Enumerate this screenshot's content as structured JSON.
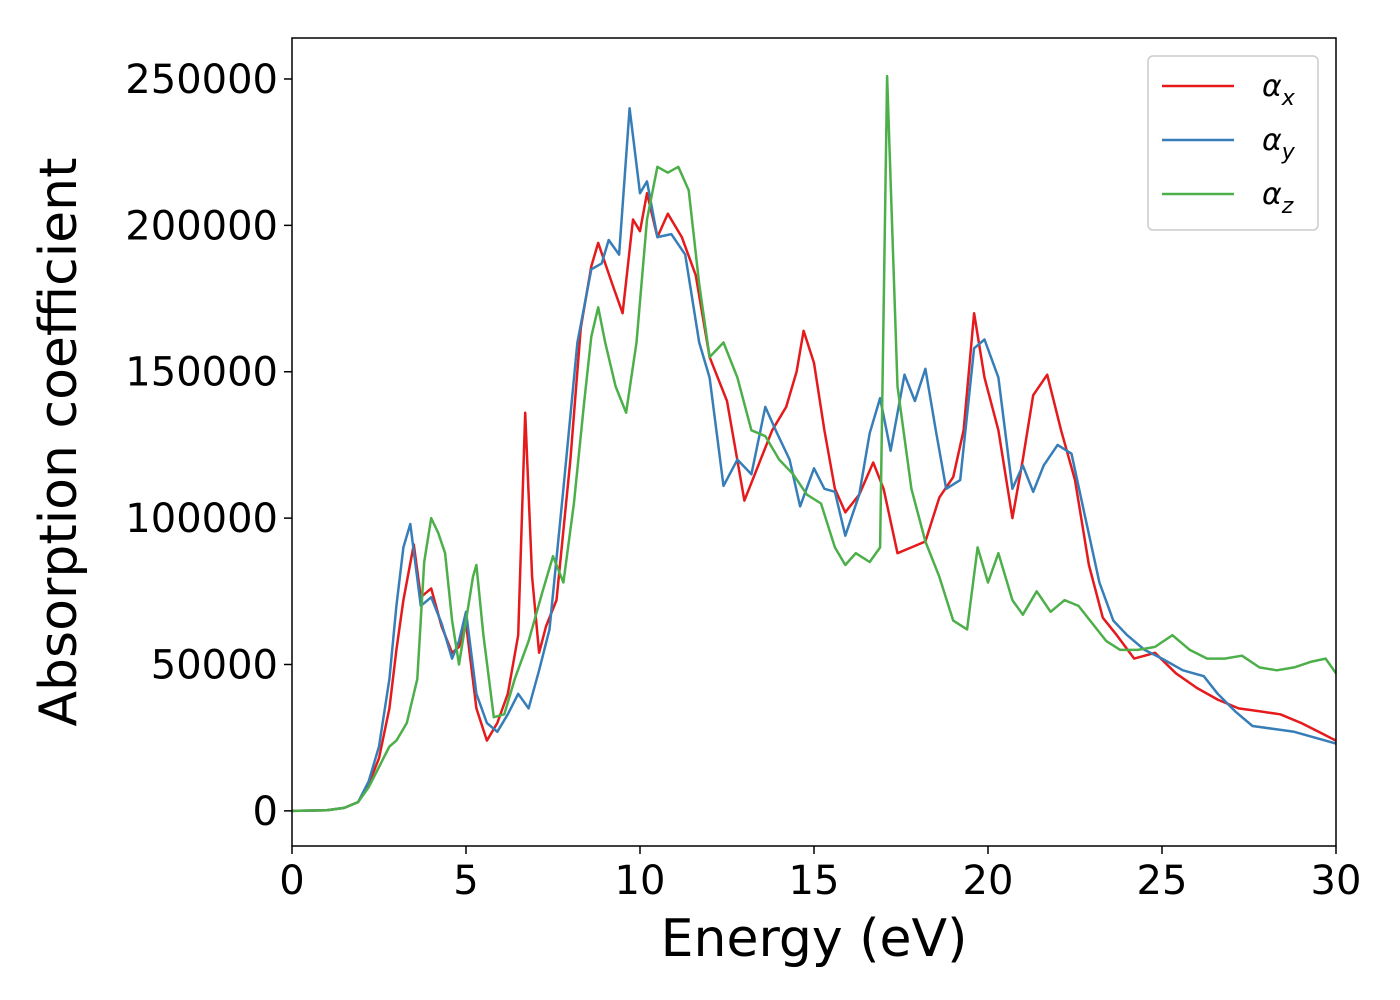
{
  "chart_data": {
    "type": "line",
    "xlabel": "Energy (eV)",
    "ylabel": "Absorption coefficient",
    "xlim": [
      0,
      30
    ],
    "ylim": [
      -12000,
      264000
    ],
    "x_ticks": [
      "0",
      "5",
      "10",
      "15",
      "20",
      "25",
      "30"
    ],
    "y_ticks": [
      "0",
      "50000",
      "100000",
      "150000",
      "200000",
      "250000"
    ],
    "grid": false,
    "legend_position": "top-right",
    "series": [
      {
        "name": "α",
        "subscript": "x",
        "color": "#e41a1c",
        "points": [
          [
            0,
            0
          ],
          [
            1.0,
            200
          ],
          [
            1.5,
            1000
          ],
          [
            1.9,
            3000
          ],
          [
            2.2,
            9000
          ],
          [
            2.5,
            18000
          ],
          [
            2.8,
            35000
          ],
          [
            3.0,
            55000
          ],
          [
            3.2,
            72000
          ],
          [
            3.5,
            91000
          ],
          [
            3.7,
            73000
          ],
          [
            4.0,
            76000
          ],
          [
            4.3,
            63000
          ],
          [
            4.6,
            54000
          ],
          [
            4.8,
            56000
          ],
          [
            5.0,
            64000
          ],
          [
            5.3,
            35000
          ],
          [
            5.6,
            24000
          ],
          [
            5.9,
            30000
          ],
          [
            6.2,
            40000
          ],
          [
            6.5,
            60000
          ],
          [
            6.7,
            136000
          ],
          [
            6.9,
            80000
          ],
          [
            7.1,
            54000
          ],
          [
            7.3,
            63000
          ],
          [
            7.6,
            72000
          ],
          [
            8.0,
            120000
          ],
          [
            8.3,
            165000
          ],
          [
            8.6,
            186000
          ],
          [
            8.8,
            194000
          ],
          [
            9.2,
            180000
          ],
          [
            9.5,
            170000
          ],
          [
            9.8,
            202000
          ],
          [
            10.0,
            198000
          ],
          [
            10.2,
            211000
          ],
          [
            10.5,
            196000
          ],
          [
            10.8,
            204000
          ],
          [
            11.2,
            196000
          ],
          [
            11.6,
            183000
          ],
          [
            12.0,
            155000
          ],
          [
            12.5,
            140000
          ],
          [
            13.0,
            106000
          ],
          [
            13.4,
            118000
          ],
          [
            13.8,
            130000
          ],
          [
            14.2,
            138000
          ],
          [
            14.5,
            150000
          ],
          [
            14.7,
            164000
          ],
          [
            15.0,
            153000
          ],
          [
            15.3,
            130000
          ],
          [
            15.6,
            110000
          ],
          [
            15.9,
            102000
          ],
          [
            16.3,
            108000
          ],
          [
            16.7,
            119000
          ],
          [
            17.0,
            110000
          ],
          [
            17.4,
            88000
          ],
          [
            17.8,
            90000
          ],
          [
            18.2,
            92000
          ],
          [
            18.6,
            107000
          ],
          [
            19.0,
            114000
          ],
          [
            19.3,
            130000
          ],
          [
            19.6,
            170000
          ],
          [
            19.9,
            148000
          ],
          [
            20.3,
            130000
          ],
          [
            20.7,
            100000
          ],
          [
            21.0,
            120000
          ],
          [
            21.3,
            142000
          ],
          [
            21.7,
            149000
          ],
          [
            22.1,
            130000
          ],
          [
            22.5,
            113000
          ],
          [
            22.9,
            84000
          ],
          [
            23.3,
            66000
          ],
          [
            23.7,
            60000
          ],
          [
            24.2,
            52000
          ],
          [
            24.8,
            54000
          ],
          [
            25.4,
            47000
          ],
          [
            26.0,
            42000
          ],
          [
            26.6,
            38000
          ],
          [
            27.2,
            35000
          ],
          [
            27.8,
            34000
          ],
          [
            28.4,
            33000
          ],
          [
            29.0,
            30000
          ],
          [
            29.5,
            27000
          ],
          [
            30.0,
            24000
          ]
        ]
      },
      {
        "name": "α",
        "subscript": "y",
        "color": "#377eb8",
        "points": [
          [
            0,
            0
          ],
          [
            1.0,
            200
          ],
          [
            1.5,
            1000
          ],
          [
            1.9,
            3000
          ],
          [
            2.2,
            10000
          ],
          [
            2.5,
            22000
          ],
          [
            2.8,
            45000
          ],
          [
            3.0,
            70000
          ],
          [
            3.2,
            90000
          ],
          [
            3.4,
            98000
          ],
          [
            3.7,
            70000
          ],
          [
            4.0,
            73000
          ],
          [
            4.3,
            64000
          ],
          [
            4.6,
            52000
          ],
          [
            4.8,
            58000
          ],
          [
            5.0,
            68000
          ],
          [
            5.3,
            40000
          ],
          [
            5.6,
            30000
          ],
          [
            5.9,
            27000
          ],
          [
            6.2,
            33000
          ],
          [
            6.5,
            40000
          ],
          [
            6.8,
            35000
          ],
          [
            7.1,
            48000
          ],
          [
            7.4,
            62000
          ],
          [
            7.8,
            110000
          ],
          [
            8.2,
            160000
          ],
          [
            8.6,
            185000
          ],
          [
            8.9,
            187000
          ],
          [
            9.1,
            195000
          ],
          [
            9.4,
            190000
          ],
          [
            9.7,
            240000
          ],
          [
            10.0,
            211000
          ],
          [
            10.2,
            215000
          ],
          [
            10.5,
            196000
          ],
          [
            10.9,
            197000
          ],
          [
            11.3,
            190000
          ],
          [
            11.7,
            160000
          ],
          [
            12.0,
            148000
          ],
          [
            12.4,
            111000
          ],
          [
            12.8,
            120000
          ],
          [
            13.2,
            115000
          ],
          [
            13.6,
            138000
          ],
          [
            13.9,
            130000
          ],
          [
            14.3,
            120000
          ],
          [
            14.6,
            104000
          ],
          [
            15.0,
            117000
          ],
          [
            15.3,
            110000
          ],
          [
            15.6,
            109000
          ],
          [
            15.9,
            94000
          ],
          [
            16.3,
            108000
          ],
          [
            16.6,
            129000
          ],
          [
            16.9,
            141000
          ],
          [
            17.2,
            123000
          ],
          [
            17.6,
            149000
          ],
          [
            17.9,
            140000
          ],
          [
            18.2,
            151000
          ],
          [
            18.5,
            130000
          ],
          [
            18.8,
            110000
          ],
          [
            19.2,
            113000
          ],
          [
            19.6,
            158000
          ],
          [
            19.9,
            161000
          ],
          [
            20.3,
            148000
          ],
          [
            20.7,
            110000
          ],
          [
            21.0,
            118000
          ],
          [
            21.3,
            109000
          ],
          [
            21.6,
            118000
          ],
          [
            22.0,
            125000
          ],
          [
            22.4,
            122000
          ],
          [
            22.8,
            100000
          ],
          [
            23.2,
            78000
          ],
          [
            23.6,
            65000
          ],
          [
            24.0,
            60000
          ],
          [
            24.5,
            55000
          ],
          [
            25.0,
            52000
          ],
          [
            25.6,
            48000
          ],
          [
            26.2,
            46000
          ],
          [
            26.6,
            40000
          ],
          [
            27.1,
            34000
          ],
          [
            27.6,
            29000
          ],
          [
            28.2,
            28000
          ],
          [
            28.8,
            27000
          ],
          [
            29.4,
            25000
          ],
          [
            30.0,
            23000
          ]
        ]
      },
      {
        "name": "α",
        "subscript": "z",
        "color": "#4daf4a",
        "points": [
          [
            0,
            0
          ],
          [
            1.0,
            200
          ],
          [
            1.5,
            1000
          ],
          [
            1.9,
            3000
          ],
          [
            2.2,
            8000
          ],
          [
            2.5,
            15000
          ],
          [
            2.8,
            22000
          ],
          [
            3.0,
            24000
          ],
          [
            3.3,
            30000
          ],
          [
            3.6,
            45000
          ],
          [
            3.8,
            85000
          ],
          [
            4.0,
            100000
          ],
          [
            4.2,
            95000
          ],
          [
            4.4,
            88000
          ],
          [
            4.6,
            65000
          ],
          [
            4.8,
            50000
          ],
          [
            5.0,
            65000
          ],
          [
            5.2,
            80000
          ],
          [
            5.3,
            84000
          ],
          [
            5.5,
            60000
          ],
          [
            5.8,
            32000
          ],
          [
            6.1,
            33000
          ],
          [
            6.4,
            45000
          ],
          [
            6.8,
            58000
          ],
          [
            7.2,
            75000
          ],
          [
            7.5,
            87000
          ],
          [
            7.8,
            78000
          ],
          [
            8.1,
            105000
          ],
          [
            8.4,
            140000
          ],
          [
            8.6,
            162000
          ],
          [
            8.8,
            172000
          ],
          [
            9.0,
            160000
          ],
          [
            9.3,
            145000
          ],
          [
            9.6,
            136000
          ],
          [
            9.9,
            160000
          ],
          [
            10.2,
            202000
          ],
          [
            10.5,
            220000
          ],
          [
            10.8,
            218000
          ],
          [
            11.1,
            220000
          ],
          [
            11.4,
            212000
          ],
          [
            11.7,
            180000
          ],
          [
            12.0,
            155000
          ],
          [
            12.4,
            160000
          ],
          [
            12.8,
            148000
          ],
          [
            13.2,
            130000
          ],
          [
            13.6,
            128000
          ],
          [
            14.0,
            120000
          ],
          [
            14.4,
            115000
          ],
          [
            14.8,
            108000
          ],
          [
            15.2,
            105000
          ],
          [
            15.6,
            90000
          ],
          [
            15.9,
            84000
          ],
          [
            16.2,
            88000
          ],
          [
            16.6,
            85000
          ],
          [
            16.9,
            90000
          ],
          [
            17.1,
            251000
          ],
          [
            17.4,
            145000
          ],
          [
            17.8,
            110000
          ],
          [
            18.2,
            92000
          ],
          [
            18.6,
            80000
          ],
          [
            19.0,
            65000
          ],
          [
            19.4,
            62000
          ],
          [
            19.7,
            90000
          ],
          [
            20.0,
            78000
          ],
          [
            20.3,
            88000
          ],
          [
            20.7,
            72000
          ],
          [
            21.0,
            67000
          ],
          [
            21.4,
            75000
          ],
          [
            21.8,
            68000
          ],
          [
            22.2,
            72000
          ],
          [
            22.6,
            70000
          ],
          [
            23.0,
            64000
          ],
          [
            23.4,
            58000
          ],
          [
            23.8,
            55000
          ],
          [
            24.3,
            55000
          ],
          [
            24.8,
            56000
          ],
          [
            25.3,
            60000
          ],
          [
            25.8,
            55000
          ],
          [
            26.3,
            52000
          ],
          [
            26.8,
            52000
          ],
          [
            27.3,
            53000
          ],
          [
            27.8,
            49000
          ],
          [
            28.3,
            48000
          ],
          [
            28.8,
            49000
          ],
          [
            29.3,
            51000
          ],
          [
            29.7,
            52000
          ],
          [
            30.0,
            47000
          ]
        ]
      }
    ]
  }
}
